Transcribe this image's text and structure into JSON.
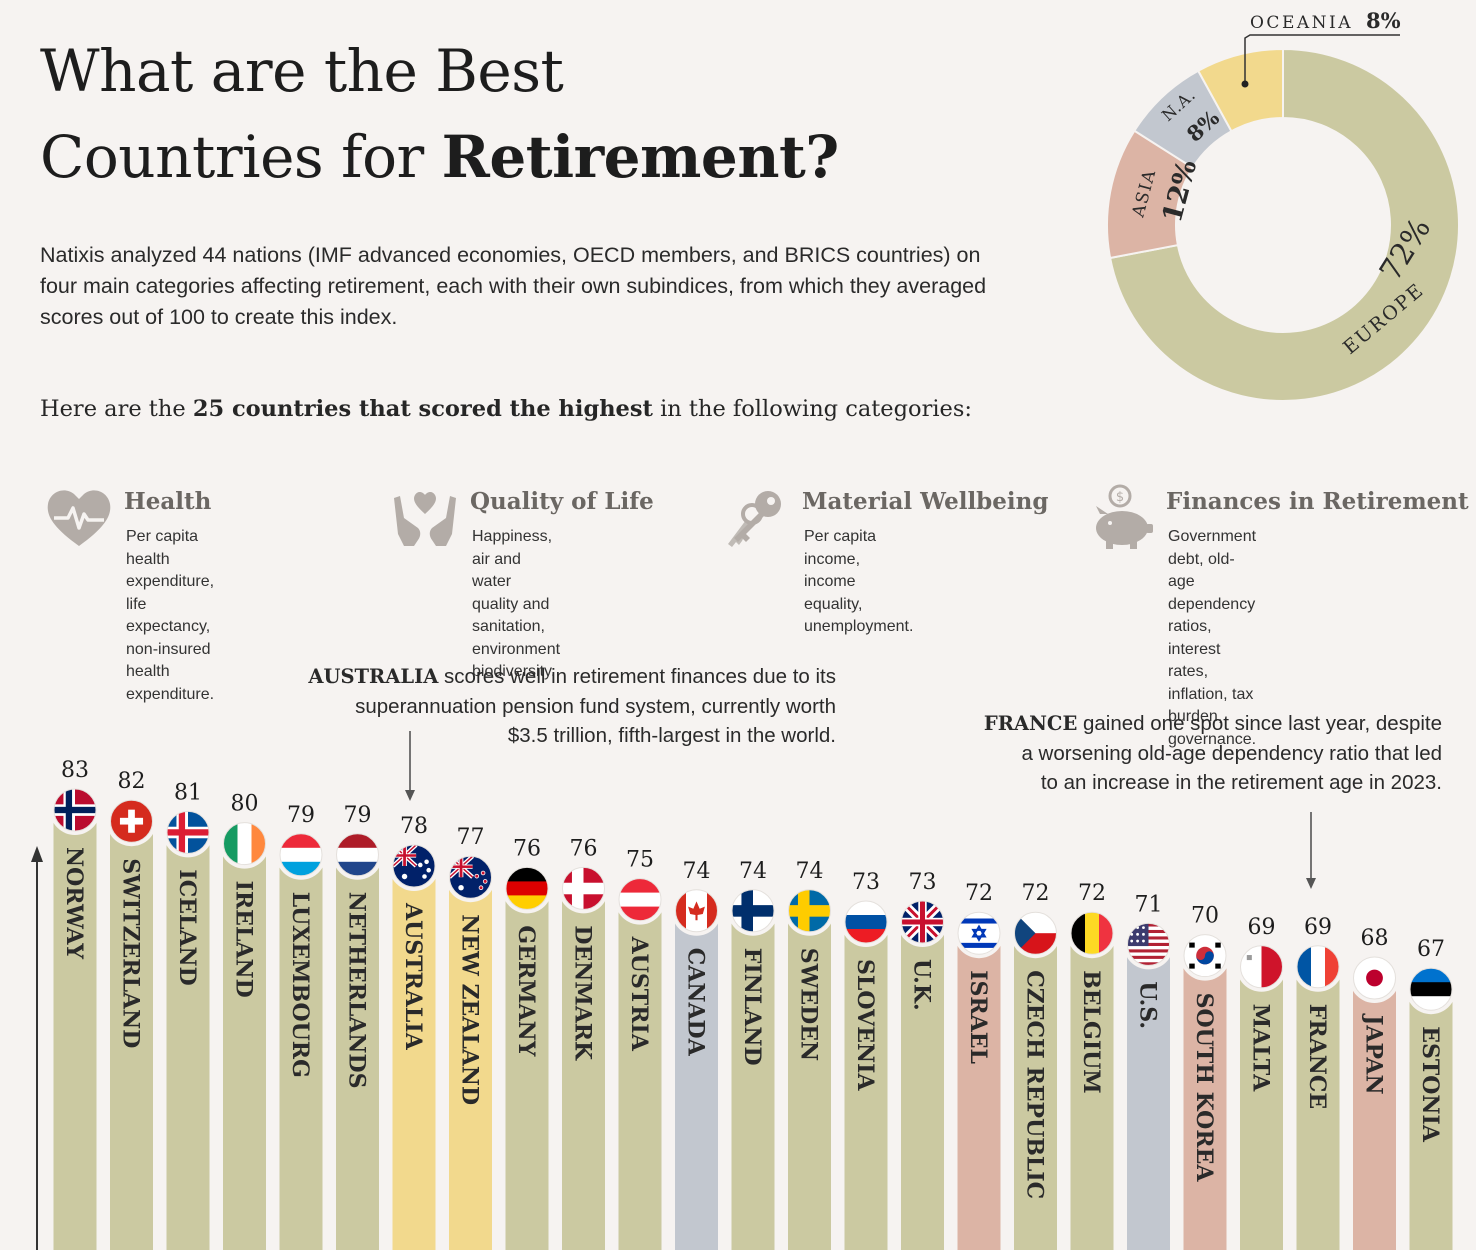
{
  "title": {
    "line1": "What are the Best",
    "line2_regular": "Countries for ",
    "line2_bold": "Retirement?"
  },
  "intro": "Natixis analyzed 44 nations (IMF advanced economies, OECD members, and BRICS countries) on four main categories affecting retirement, each with their own subindices, from which they averaged scores out of 100 to create this index.",
  "subhead": {
    "before": "Here are the ",
    "bold": "25 countries that scored the highest",
    "after": " in the following categories:"
  },
  "categories": [
    {
      "title": "Health",
      "desc": "Per capita health\nexpenditure, life expectancy,\nnon-insured health expenditure.",
      "icon": "heart-pulse-icon"
    },
    {
      "title": "Quality of Life",
      "desc": "Happiness, air and water\nquality and sanitation,\nenvironment biodiversity.",
      "icon": "hands-heart-icon"
    },
    {
      "title": "Material Wellbeing",
      "desc": "Per capita income, income\nequality, unemployment.",
      "icon": "keys-icon"
    },
    {
      "title": "Finances in Retirement",
      "desc": "Government debt, old-age\ndependency ratios, interest rates,\ninflation, tax burden, governance.",
      "icon": "piggy-bank-icon"
    }
  ],
  "annotations": {
    "australia": {
      "bold": "AUSTRALIA",
      "line1": " scores well in retirement finances due to its",
      "line2": "superannuation pension fund system, currently worth",
      "line3": "$3.5 trillion, fifth-largest in the world."
    },
    "france": {
      "bold": "FRANCE",
      "line1": " gained one spot since last year, despite",
      "line2": "a worsening old-age dependency ratio that led",
      "line3": "to an increase in the retirement age in 2023."
    }
  },
  "colors": {
    "europe": "#cbc9a1",
    "asia": "#dcb4a5",
    "north_america": "#c2c7cf",
    "oceania": "#f2d98d",
    "background": "#f6f3f1"
  },
  "chart_data": [
    {
      "type": "bar",
      "categories": [
        "NORWAY",
        "SWITZERLAND",
        "ICELAND",
        "IRELAND",
        "LUXEMBOURG",
        "NETHERLANDS",
        "AUSTRALIA",
        "NEW ZEALAND",
        "GERMANY",
        "DENMARK",
        "AUSTRIA",
        "CANADA",
        "FINLAND",
        "SWEDEN",
        "SLOVENIA",
        "U.K.",
        "ISRAEL",
        "CZECH REPUBLIC",
        "BELGIUM",
        "U.S.",
        "SOUTH KOREA",
        "MALTA",
        "FRANCE",
        "JAPAN",
        "ESTONIA"
      ],
      "values": [
        83,
        82,
        81,
        80,
        79,
        79,
        78,
        77,
        76,
        76,
        75,
        74,
        74,
        74,
        73,
        73,
        72,
        72,
        72,
        71,
        70,
        69,
        69,
        68,
        67
      ],
      "regions": [
        "europe",
        "europe",
        "europe",
        "europe",
        "europe",
        "europe",
        "oceania",
        "oceania",
        "europe",
        "europe",
        "europe",
        "north_america",
        "europe",
        "europe",
        "europe",
        "europe",
        "asia",
        "europe",
        "europe",
        "north_america",
        "asia",
        "europe",
        "europe",
        "asia",
        "europe"
      ],
      "flags": [
        "norway-flag-icon",
        "switzerland-flag-icon",
        "iceland-flag-icon",
        "ireland-flag-icon",
        "luxembourg-flag-icon",
        "netherlands-flag-icon",
        "australia-flag-icon",
        "new-zealand-flag-icon",
        "germany-flag-icon",
        "denmark-flag-icon",
        "austria-flag-icon",
        "canada-flag-icon",
        "finland-flag-icon",
        "sweden-flag-icon",
        "slovenia-flag-icon",
        "uk-flag-icon",
        "israel-flag-icon",
        "czech-republic-flag-icon",
        "belgium-flag-icon",
        "us-flag-icon",
        "south-korea-flag-icon",
        "malta-flag-icon",
        "france-flag-icon",
        "japan-flag-icon",
        "estonia-flag-icon"
      ]
    },
    {
      "type": "pie",
      "categories": [
        "EUROPE",
        "ASIA",
        "N.A.",
        "OCEANIA"
      ],
      "values": [
        72,
        12,
        8,
        8
      ],
      "labels": [
        "72%",
        "12%",
        "8%",
        "8%"
      ]
    }
  ]
}
